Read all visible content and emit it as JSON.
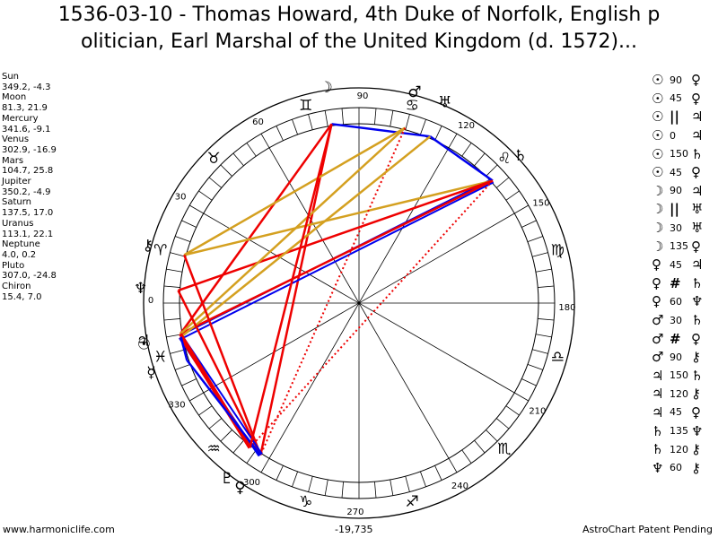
{
  "title_line1": "1536-03-10 - Thomas Howard, 4th Duke of Norfolk, English p",
  "title_line2": "olitician, Earl Marshal of the United Kingdom (d. 1572)...",
  "positions": [
    {
      "name": "Sun",
      "value": "349.2, -4.3"
    },
    {
      "name": "Moon",
      "value": "81.3, 21.9"
    },
    {
      "name": "Mercury",
      "value": "341.6, -9.1"
    },
    {
      "name": "Venus",
      "value": "302.9, -16.9"
    },
    {
      "name": "Mars",
      "value": "104.7, 25.8"
    },
    {
      "name": "Jupiter",
      "value": "350.2, -4.9"
    },
    {
      "name": "Saturn",
      "value": "137.5, 17.0"
    },
    {
      "name": "Uranus",
      "value": "113.1, 22.1"
    },
    {
      "name": "Neptune",
      "value": "4.0, 0.2"
    },
    {
      "name": "Pluto",
      "value": "307.0, -24.8"
    },
    {
      "name": "Chiron",
      "value": "15.4, 7.0"
    }
  ],
  "aspects": [
    {
      "p1": "☉",
      "asp": "90",
      "p2": "♀"
    },
    {
      "p1": "☉",
      "asp": "45",
      "p2": "♀"
    },
    {
      "p1": "☉",
      "asp": "||",
      "p2": "♃"
    },
    {
      "p1": "☉",
      "asp": "0",
      "p2": "♃"
    },
    {
      "p1": "☉",
      "asp": "150",
      "p2": "♄"
    },
    {
      "p1": "☉",
      "asp": "45",
      "p2": "♀"
    },
    {
      "p1": "☽",
      "asp": "90",
      "p2": "♃"
    },
    {
      "p1": "☽",
      "asp": "||",
      "p2": "♅"
    },
    {
      "p1": "☽",
      "asp": "30",
      "p2": "♅"
    },
    {
      "p1": "☽",
      "asp": "135",
      "p2": "♀"
    },
    {
      "p1": "♀",
      "asp": "45",
      "p2": "♃"
    },
    {
      "p1": "♀",
      "asp": "#",
      "p2": "♄"
    },
    {
      "p1": "♀",
      "asp": "60",
      "p2": "♆"
    },
    {
      "p1": "♂",
      "asp": "30",
      "p2": "♄"
    },
    {
      "p1": "♂",
      "asp": "#",
      "p2": "♀"
    },
    {
      "p1": "♂",
      "asp": "90",
      "p2": "⚷"
    },
    {
      "p1": "♃",
      "asp": "150",
      "p2": "♄"
    },
    {
      "p1": "♃",
      "asp": "120",
      "p2": "⚷"
    },
    {
      "p1": "♃",
      "asp": "45",
      "p2": "♀"
    },
    {
      "p1": "♄",
      "asp": "135",
      "p2": "♆"
    },
    {
      "p1": "♄",
      "asp": "120",
      "p2": "⚷"
    },
    {
      "p1": "♆",
      "asp": "60",
      "p2": "⚷"
    }
  ],
  "degree_labels": [
    "0",
    "30",
    "60",
    "90",
    "120",
    "150",
    "180",
    "210",
    "240",
    "270",
    "300",
    "330"
  ],
  "signs": [
    "♈",
    "♉",
    "♊",
    "♋",
    "♌",
    "♍",
    "♎",
    "♏",
    "♐",
    "♑",
    "♒",
    "♓"
  ],
  "planets": [
    {
      "key": "sun",
      "glyph": "☉",
      "lon": 349.2
    },
    {
      "key": "moon",
      "glyph": "☽",
      "lon": 81.3
    },
    {
      "key": "mercury",
      "glyph": "☿",
      "lon": 341.6
    },
    {
      "key": "venus",
      "glyph": "♀",
      "lon": 302.9
    },
    {
      "key": "mars",
      "glyph": "♂",
      "lon": 104.7
    },
    {
      "key": "jupiter",
      "glyph": "♃",
      "lon": 350.2
    },
    {
      "key": "saturn",
      "glyph": "♄",
      "lon": 137.5
    },
    {
      "key": "uranus",
      "glyph": "♅",
      "lon": 113.1
    },
    {
      "key": "neptune",
      "glyph": "♆",
      "lon": 4.0
    },
    {
      "key": "pluto",
      "glyph": "♇",
      "lon": 307.0
    },
    {
      "key": "chiron",
      "glyph": "⚷",
      "lon": 15.4
    }
  ],
  "aspect_lines": [
    {
      "from": "moon",
      "to": "uranus",
      "color": "#0000ee",
      "style": "solid"
    },
    {
      "from": "moon",
      "to": "venus",
      "color": "#ee0000",
      "style": "solid"
    },
    {
      "from": "moon",
      "to": "jupiter",
      "color": "#ee0000",
      "style": "solid"
    },
    {
      "from": "saturn",
      "to": "sun",
      "color": "#0000ee",
      "style": "double"
    },
    {
      "from": "saturn",
      "to": "chiron",
      "color": "#d4a020",
      "style": "solid"
    },
    {
      "from": "saturn",
      "to": "neptune",
      "color": "#ee0000",
      "style": "solid"
    },
    {
      "from": "saturn",
      "to": "uranus",
      "color": "#0000ee",
      "style": "solid"
    },
    {
      "from": "saturn",
      "to": "pluto",
      "color": "#ee0000",
      "style": "dotted"
    },
    {
      "from": "saturn",
      "to": "jupiter",
      "color": "#ee0000",
      "style": "solid"
    },
    {
      "from": "mars",
      "to": "chiron",
      "color": "#d4a020",
      "style": "solid"
    },
    {
      "from": "mars",
      "to": "jupiter",
      "color": "#d4a020",
      "style": "solid"
    },
    {
      "from": "mars",
      "to": "venus",
      "color": "#ee0000",
      "style": "dotted"
    },
    {
      "from": "uranus",
      "to": "sun",
      "color": "#d4a020",
      "style": "solid"
    },
    {
      "from": "chiron",
      "to": "venus",
      "color": "#ee0000",
      "style": "solid"
    },
    {
      "from": "neptune",
      "to": "venus",
      "color": "#ee0000",
      "style": "solid"
    },
    {
      "from": "sun",
      "to": "venus",
      "color": "#0000ee",
      "style": "double"
    },
    {
      "from": "sun",
      "to": "pluto",
      "color": "#ee0000",
      "style": "bold"
    },
    {
      "from": "jupiter",
      "to": "pluto",
      "color": "#ee0000",
      "style": "bold"
    },
    {
      "from": "mercury",
      "to": "venus",
      "color": "#0000ee",
      "style": "solid"
    },
    {
      "from": "sun",
      "to": "mercury",
      "color": "#0000ee",
      "style": "solid"
    },
    {
      "from": "moon",
      "to": "pluto",
      "color": "#ee0000",
      "style": "solid"
    }
  ],
  "footer": {
    "left": "www.harmoniclife.com",
    "mid": "-19,735",
    "right": "AstroChart Patent Pending"
  }
}
